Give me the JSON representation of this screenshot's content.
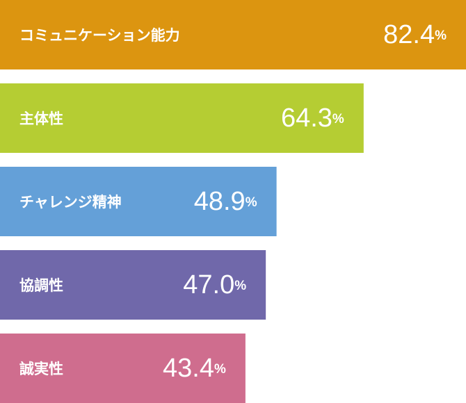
{
  "chart_data": {
    "type": "bar",
    "orientation": "horizontal",
    "categories": [
      "コミュニケーション能力",
      "主体性",
      "チャレンジ精神",
      "協調性",
      "誠実性"
    ],
    "values": [
      82.4,
      64.3,
      48.9,
      47.0,
      43.4
    ],
    "value_labels": [
      "82.4%",
      "64.3%",
      "48.9%",
      "47.0%",
      "43.4%"
    ],
    "colors": [
      "#dc9510",
      "#b5cd33",
      "#64a0d8",
      "#7068aa",
      "#cf6d8e"
    ]
  }
}
